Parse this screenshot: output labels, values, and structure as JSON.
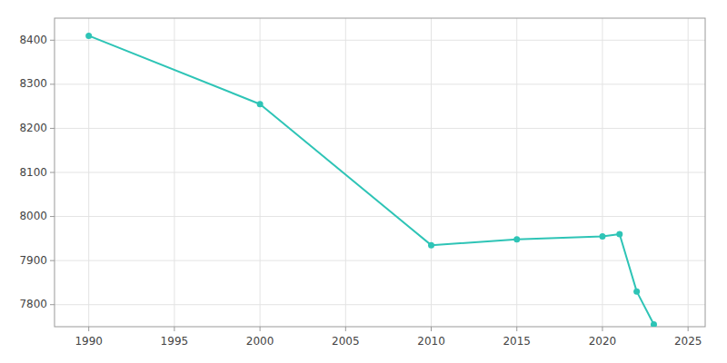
{
  "chart_data": {
    "type": "line",
    "x": [
      1990,
      2000,
      2010,
      2015,
      2020,
      2021,
      2022,
      2023
    ],
    "values": [
      8410,
      8255,
      7935,
      7948,
      7955,
      7960,
      7830,
      7755
    ],
    "color": "#2ec4b6",
    "marker": "circle",
    "xlim": [
      1988,
      2026
    ],
    "ylim": [
      7750,
      8450
    ],
    "xticks": [
      1990,
      1995,
      2000,
      2005,
      2010,
      2015,
      2020,
      2025
    ],
    "yticks": [
      7800,
      7900,
      8000,
      8100,
      8200,
      8300,
      8400
    ],
    "grid": true
  }
}
